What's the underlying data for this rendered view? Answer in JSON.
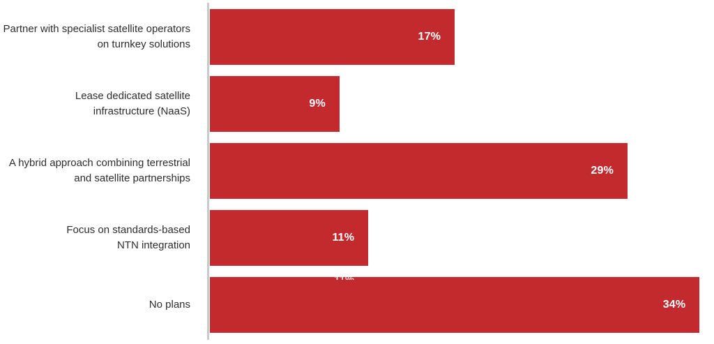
{
  "chart_data": {
    "type": "bar",
    "orientation": "horizontal",
    "title": "",
    "xlabel": "",
    "ylabel": "",
    "grid": false,
    "legend": false,
    "xlim": [
      0,
      35
    ],
    "categories": [
      "Partner with specialist satellite operators\non turnkey solutions",
      "Lease dedicated satellite\ninfrastructure (NaaS)",
      "A hybrid approach combining terrestrial\nand satellite partnerships",
      "Focus on standards-based\nNTN integration",
      "No plans"
    ],
    "values": [
      17,
      9,
      29,
      11,
      34
    ],
    "value_labels": [
      "17%",
      "9%",
      "29%",
      "11%",
      "34%"
    ],
    "colors": {
      "bar": "#c22a2e",
      "value_label": "#ffffff",
      "category_label": "#2d2d2d",
      "axis_line": "#c7cbcb",
      "background": "#ffffff"
    }
  },
  "artifact": {
    "clipped_label": "11%"
  }
}
